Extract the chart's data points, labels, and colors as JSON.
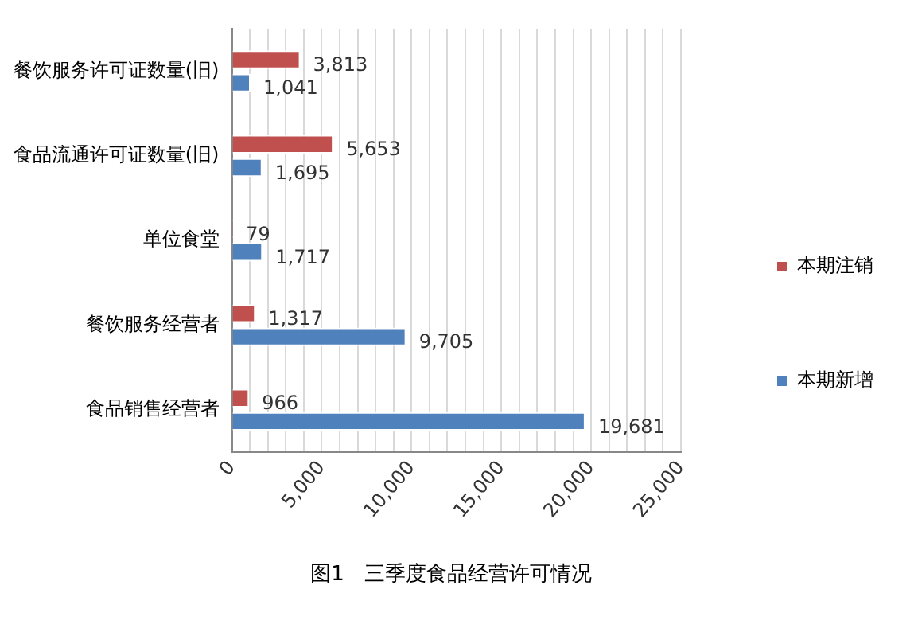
{
  "chart_data": {
    "type": "bar",
    "orientation": "horizontal",
    "title": "图1   三季度食品经营许可情况",
    "categories": [
      "餐饮服务许可证数量(旧)",
      "食品流通许可证数量(旧)",
      "单位食堂",
      "餐饮服务经营者",
      "食品销售经营者"
    ],
    "series": [
      {
        "name": "本期注销",
        "color": "#c0504d",
        "values": [
          3813,
          5653,
          79,
          1317,
          966
        ],
        "value_labels": [
          "3,813",
          "5,653",
          "79",
          "1,317",
          "966"
        ]
      },
      {
        "name": "本期新增",
        "color": "#4f81bd",
        "values": [
          1041,
          1695,
          1717,
          9705,
          19681
        ],
        "value_labels": [
          "1,041",
          "1,695",
          "1,717",
          "9,705",
          "19,681"
        ]
      }
    ],
    "xlim": [
      0,
      25000
    ],
    "xticks": [
      0,
      {
        "value": 1000,
        "label": null
      },
      {
        "value": 2000,
        "label": null
      },
      {
        "value": 3000,
        "label": null
      },
      {
        "value": 4000,
        "label": null
      },
      {
        "value": 5000,
        "label": "5,000"
      },
      {
        "value": 6000,
        "label": null
      },
      {
        "value": 7000,
        "label": null
      },
      {
        "value": 8000,
        "label": null
      },
      {
        "value": 9000,
        "label": null
      },
      {
        "value": 10000,
        "label": "10,000"
      },
      {
        "value": 11000,
        "label": null
      },
      {
        "value": 12000,
        "label": null
      },
      {
        "value": 13000,
        "label": null
      },
      {
        "value": 14000,
        "label": null
      },
      {
        "value": 15000,
        "label": "15,000"
      },
      {
        "value": 16000,
        "label": null
      },
      {
        "value": 17000,
        "label": null
      },
      {
        "value": 18000,
        "label": null
      },
      {
        "value": 19000,
        "label": null
      },
      {
        "value": 20000,
        "label": "20,000"
      },
      {
        "value": 21000,
        "label": null
      },
      {
        "value": 22000,
        "label": null
      },
      {
        "value": 23000,
        "label": null
      },
      {
        "value": 24000,
        "label": null
      },
      {
        "value": 25000,
        "label": "25,000"
      }
    ],
    "grid": "x",
    "legend": "right"
  }
}
